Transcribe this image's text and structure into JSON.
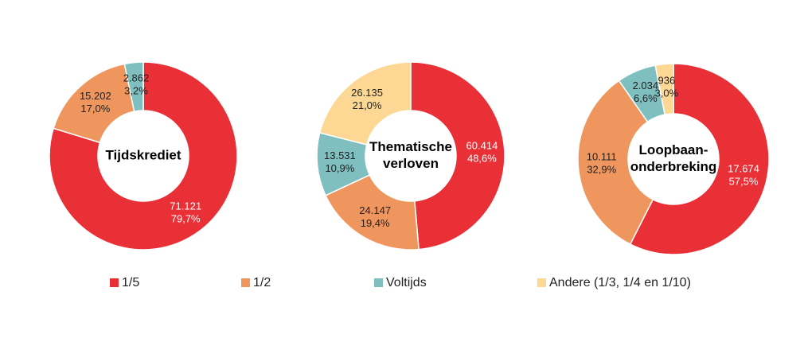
{
  "legend": {
    "labels": [
      "1/5",
      "1/2",
      "Voltijds",
      "Andere (1/3, 1/4 en 1/10)"
    ],
    "colors": [
      "#e83036",
      "#ef965e",
      "#7fbfc0",
      "#fdd894"
    ]
  },
  "chart_data": [
    {
      "type": "donut",
      "title": [
        "Tijdskrediet"
      ],
      "values": [
        71121,
        15202,
        2862
      ],
      "value_labels": [
        "71.121",
        "15.202",
        "2.862"
      ],
      "percentages": [
        79.7,
        17.0,
        3.2
      ],
      "percentage_labels": [
        "79,7%",
        "17,0%",
        "3,2%"
      ]
    },
    {
      "type": "donut",
      "title": [
        "Thematische",
        "verloven"
      ],
      "values": [
        60414,
        24147,
        13531,
        26135
      ],
      "value_labels": [
        "60.414",
        "24.147",
        "13.531",
        "26.135"
      ],
      "percentages": [
        48.6,
        19.4,
        10.9,
        21.0
      ],
      "percentage_labels": [
        "48,6%",
        "19,4%",
        "10,9%",
        "21,0%"
      ]
    },
    {
      "type": "donut",
      "title": [
        "Loopbaan-",
        "onderbreking"
      ],
      "values": [
        17674,
        10111,
        2034,
        936
      ],
      "value_labels": [
        "17.674",
        "10.111",
        "2.034",
        "936"
      ],
      "percentages": [
        57.5,
        32.9,
        6.6,
        3.0
      ],
      "percentage_labels": [
        "57,5%",
        "32,9%",
        "6,6%",
        "3,0%"
      ]
    }
  ]
}
